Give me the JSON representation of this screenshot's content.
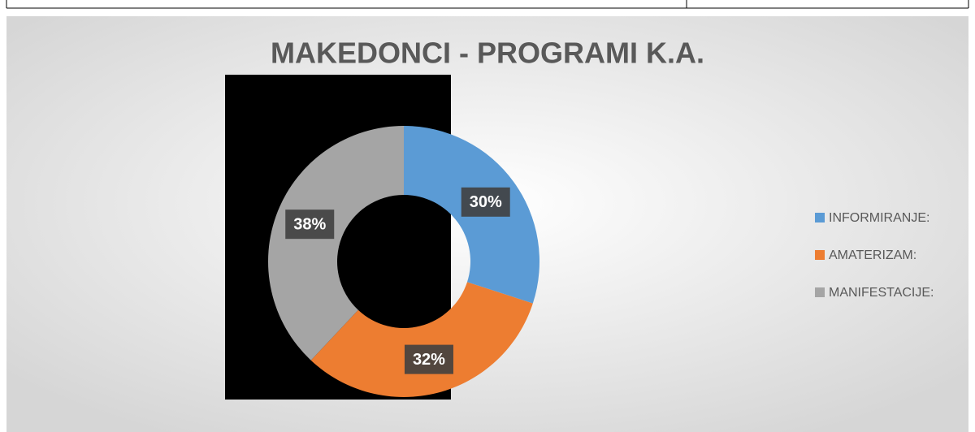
{
  "chart_data": {
    "type": "donut",
    "title": "MAKEDONCI - PROGRAMI K.A.",
    "categories": [
      "INFORMIRANJE:",
      "AMATERIZAM:",
      "MANIFESTACIJE:"
    ],
    "values": [
      30,
      32,
      38
    ],
    "value_labels": [
      "30%",
      "32%",
      "38%"
    ],
    "colors": [
      "#5b9bd5",
      "#ed7d31",
      "#a5a5a5"
    ],
    "legend": "right"
  }
}
